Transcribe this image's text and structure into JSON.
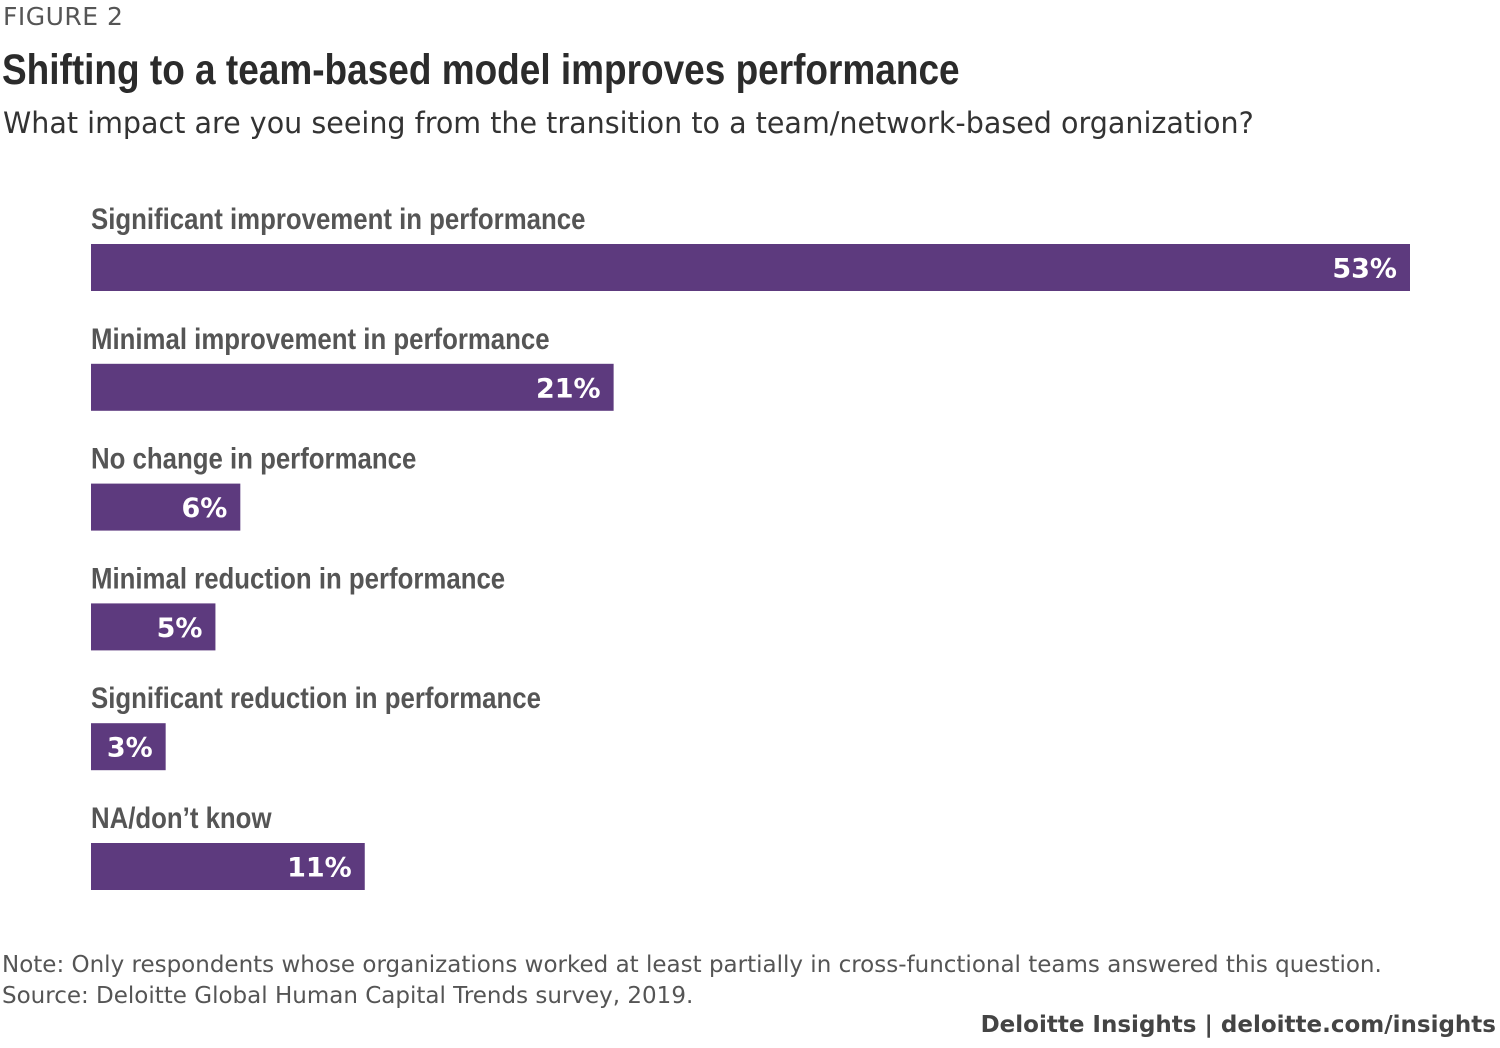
{
  "figure_label": "FIGURE 2",
  "title": "Shifting to a team-based model improves performance",
  "subtitle": "What impact are you seeing from the transition to a team/network-based organization?",
  "note": "Note: Only respondents whose organizations worked at least partially in cross-functional teams answered this question.",
  "source": "Source: Deloitte Global Human Capital Trends survey, 2019.",
  "footer": "Deloitte Insights | deloitte.com/insights",
  "colors": {
    "bar": "#5d3a7e",
    "value_text": "#ffffff",
    "category_text": "#555555"
  },
  "chart_data": {
    "type": "bar",
    "orientation": "horizontal",
    "categories": [
      "Significant improvement in performance",
      "Minimal improvement in performance",
      "No change in performance",
      "Minimal reduction in performance",
      "Significant reduction in performance",
      "NA/don’t know"
    ],
    "values": [
      53,
      21,
      6,
      5,
      3,
      11
    ],
    "value_labels": [
      "53%",
      "21%",
      "6%",
      "5%",
      "3%",
      "11%"
    ],
    "unit": "%",
    "xlim": [
      0,
      53
    ],
    "grid": false,
    "legend": "none"
  }
}
